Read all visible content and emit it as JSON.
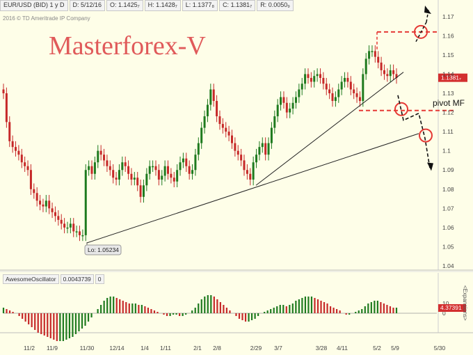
{
  "header": {
    "symbol": "EUR/USD (BID) 1 y D",
    "date": "D: 5/12/16",
    "open": "O: 1.1425₇",
    "high": "H: 1.1428₇",
    "low": "L: 1.1377₈",
    "close": "C: 1.1381₇",
    "range": "R: 0.0050₉"
  },
  "copyright": "2016 © TD Ameritrade IP Company",
  "watermark": "Masterforex-V",
  "price_label": "1.1381₇",
  "low_label": "Lo: 1.05234",
  "pivot_label": "pivot MF",
  "oscillator": {
    "name": "AwesomeOscillator",
    "value": "0.0043739",
    "extra": "0",
    "tag": "4.37391",
    "side_label": "<Expansions>"
  },
  "colors": {
    "up": "#1e7a1e",
    "down": "#c62828",
    "marker": "#e53935",
    "bg": "#fefee8"
  },
  "chart_data": [
    {
      "type": "candlestick",
      "title": "",
      "x_ticks": [
        "11/2",
        "11/9",
        "11/30",
        "12/14",
        "1/4",
        "1/11",
        "2/1",
        "2/8",
        "2/29",
        "3/7",
        "3/28",
        "4/11",
        "5/2",
        "5/9",
        "5/30"
      ],
      "y_ticks": [
        1.04,
        1.05,
        1.06,
        1.07,
        1.08,
        1.09,
        1.1,
        1.11,
        1.12,
        1.13,
        1.14,
        1.15,
        1.16,
        1.17
      ],
      "ylim": [
        1.04,
        1.175
      ],
      "close_series": [
        1.13,
        1.115,
        1.105,
        1.102,
        1.1,
        1.098,
        1.094,
        1.092,
        1.09,
        1.08,
        1.078,
        1.074,
        1.072,
        1.071,
        1.074,
        1.07,
        1.068,
        1.066,
        1.064,
        1.062,
        1.06,
        1.06,
        1.062,
        1.058,
        1.058,
        1.056,
        1.056,
        1.09,
        1.092,
        1.088,
        1.094,
        1.1,
        1.098,
        1.095,
        1.092,
        1.09,
        1.086,
        1.085,
        1.09,
        1.094,
        1.092,
        1.088,
        1.085,
        1.086,
        1.082,
        1.076,
        1.082,
        1.088,
        1.092,
        1.092,
        1.09,
        1.085,
        1.087,
        1.092,
        1.088,
        1.086,
        1.084,
        1.09,
        1.094,
        1.096,
        1.092,
        1.088,
        1.09,
        1.098,
        1.104,
        1.112,
        1.118,
        1.124,
        1.132,
        1.126,
        1.118,
        1.114,
        1.112,
        1.11,
        1.108,
        1.104,
        1.1,
        1.098,
        1.095,
        1.09,
        1.088,
        1.085,
        1.094,
        1.098,
        1.102,
        1.104,
        1.098,
        1.104,
        1.112,
        1.118,
        1.124,
        1.128,
        1.125,
        1.12,
        1.122,
        1.125,
        1.128,
        1.132,
        1.135,
        1.14,
        1.138,
        1.136,
        1.139,
        1.14,
        1.138,
        1.135,
        1.132,
        1.13,
        1.126,
        1.128,
        1.132,
        1.136,
        1.138,
        1.136,
        1.132,
        1.13,
        1.128,
        1.126,
        1.14,
        1.148,
        1.152,
        1.152,
        1.149,
        1.146,
        1.142,
        1.14,
        1.139,
        1.142,
        1.14,
        1.138
      ],
      "last_price": 1.1381,
      "period_low": 1.05234,
      "pivot": 1.121,
      "resistance": 1.162,
      "trendlines": [
        {
          "from": [
            "11/30",
            1.052
          ],
          "to": [
            "5/30",
            1.109
          ]
        },
        {
          "from": [
            "2/29",
            1.082
          ],
          "to": [
            "5/9",
            1.141
          ]
        }
      ]
    },
    {
      "type": "bar",
      "title": "AwesomeOscillator",
      "value": 0.0043739,
      "values": [
        0.004,
        0.003,
        0.002,
        0.001,
        0,
        -0.002,
        -0.004,
        -0.006,
        -0.008,
        -0.01,
        -0.012,
        -0.014,
        -0.015,
        -0.016,
        -0.017,
        -0.018,
        -0.019,
        -0.02,
        -0.02,
        -0.02,
        -0.019,
        -0.018,
        -0.017,
        -0.015,
        -0.013,
        -0.011,
        -0.009,
        -0.006,
        -0.003,
        0,
        0.003,
        0.006,
        0.009,
        0.011,
        0.012,
        0.012,
        0.011,
        0.01,
        0.009,
        0.008,
        0.007,
        0.007,
        0.007,
        0.006,
        0.006,
        0.005,
        0.004,
        0.003,
        0.002,
        0.001,
        0,
        -0.001,
        -0.002,
        -0.002,
        -0.001,
        -0.001,
        -0.002,
        -0.002,
        -0.001,
        0,
        0.002,
        0.004,
        0.007,
        0.01,
        0.012,
        0.013,
        0.013,
        0.012,
        0.01,
        0.008,
        0.006,
        0.004,
        0.002,
        0,
        -0.002,
        -0.004,
        -0.005,
        -0.006,
        -0.006,
        -0.005,
        -0.004,
        -0.002,
        0,
        0.001,
        0.002,
        0.003,
        0.004,
        0.005,
        0.006,
        0.006,
        0.005,
        0.006,
        0.007,
        0.009,
        0.01,
        0.011,
        0.012,
        0.012,
        0.012,
        0.011,
        0.01,
        0.009,
        0.008,
        0.007,
        0.005,
        0.004,
        0.003,
        0.002,
        0,
        -0.001,
        -0.001,
        0,
        0.001,
        0.002,
        0.003,
        0.005,
        0.007,
        0.008,
        0.009,
        0.009,
        0.008,
        0.007,
        0.006,
        0.005,
        0.004,
        0.004
      ],
      "ylim": [
        -0.022,
        0.016
      ]
    }
  ]
}
